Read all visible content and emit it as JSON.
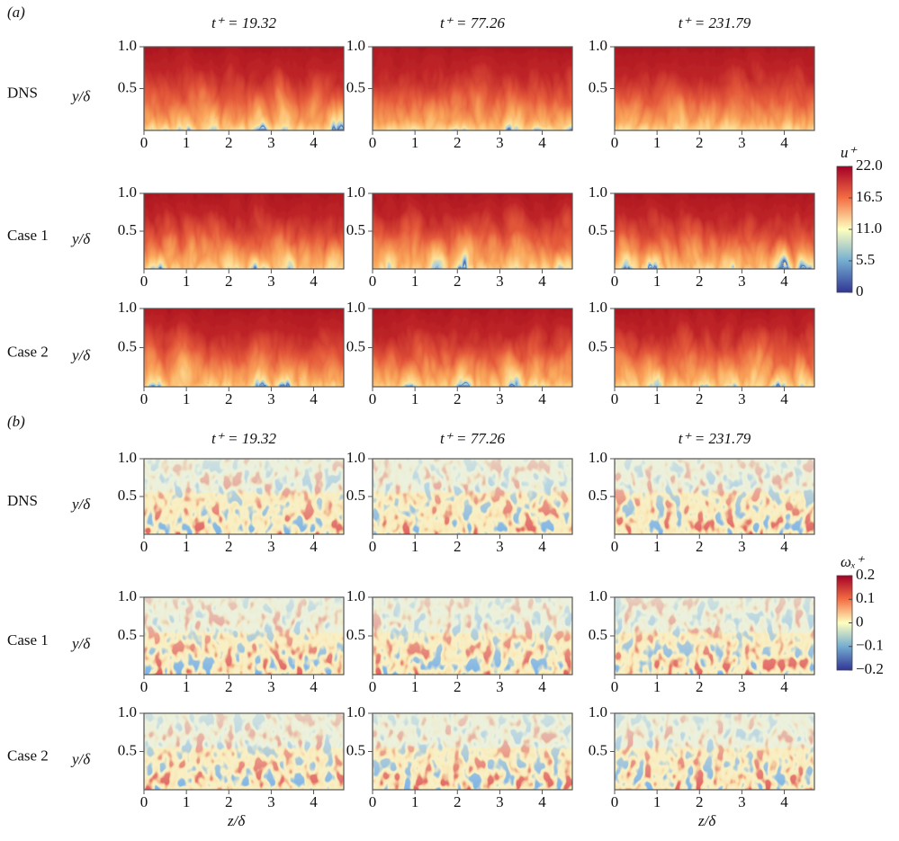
{
  "figure": {
    "panels": [
      {
        "label": "(a)",
        "column_titles": [
          "t⁺ = 19.32",
          "t⁺ = 77.26",
          "t⁺ = 231.79"
        ],
        "row_labels": [
          "DNS",
          "Case 1",
          "Case 2"
        ],
        "ylabel": "y/δ",
        "colorbar": {
          "label": "u⁺",
          "lim": [
            0,
            22
          ],
          "ticks": [
            {
              "value": 22,
              "label": "22.0"
            },
            16.5,
            {
              "value": 11,
              "label": "11.0"
            },
            5.5,
            0
          ]
        }
      },
      {
        "label": "(b)",
        "column_titles": [
          "t⁺ = 19.32",
          "t⁺ = 77.26",
          "t⁺ = 231.79"
        ],
        "row_labels": [
          "DNS",
          "Case 1",
          "Case 2"
        ],
        "ylabel": "y/δ",
        "colorbar": {
          "label": "ωₓ⁺",
          "lim": [
            -0.2,
            0.2
          ],
          "ticks": [
            0.2,
            0.1,
            0,
            {
              "value": -0.1,
              "label": "−0.1"
            },
            {
              "value": -0.2,
              "label": "−0.2"
            }
          ]
        }
      }
    ],
    "xlim": [
      0,
      4.71
    ],
    "xticks": [
      0,
      1,
      2,
      3,
      4
    ],
    "ylim": [
      0,
      1
    ],
    "yticks": [
      0.5,
      {
        "value": 1,
        "label": "1.0"
      }
    ],
    "xlabel": "z/δ"
  }
}
